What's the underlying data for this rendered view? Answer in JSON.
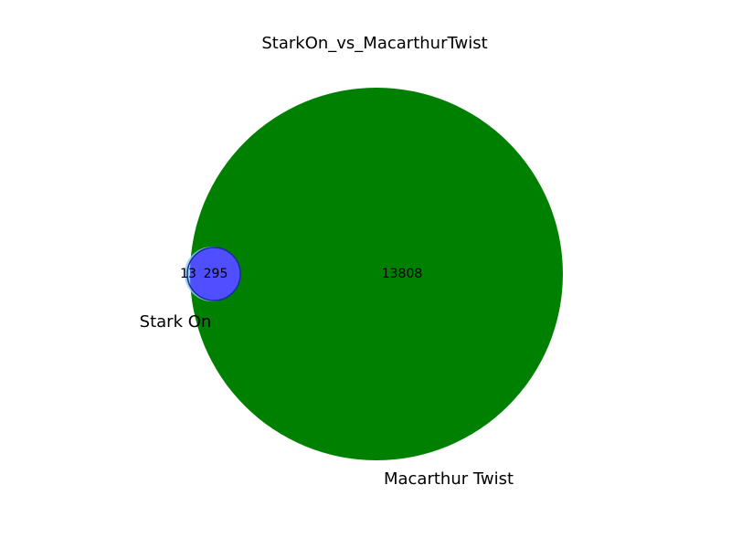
{
  "chart_data": {
    "type": "venn",
    "title": "StarkOn_vs_MacarthurTwist",
    "sets": [
      {
        "name": "Stark On",
        "color": "#87ceeb"
      },
      {
        "name": "Macarthur Twist",
        "color": "#008000"
      }
    ],
    "regions": {
      "only_a": 13,
      "intersection": 295,
      "only_b": 13808
    },
    "intersection_color": "#4f4fff"
  }
}
